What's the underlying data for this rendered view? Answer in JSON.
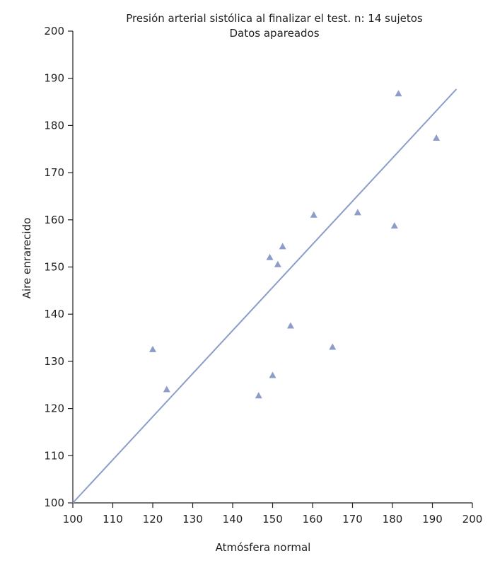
{
  "chart_data": {
    "type": "scatter",
    "title": "Presión arterial sistólica al finalizar el test. n: 14 sujetos",
    "subtitle": "Datos apareados",
    "xlabel": "Atmósfera normal",
    "ylabel": "Aire enrarecido",
    "xlim": [
      100,
      200
    ],
    "ylim": [
      100,
      200
    ],
    "xticks": [
      "100",
      "110",
      "120",
      "130",
      "140",
      "150",
      "160",
      "170",
      "180",
      "190",
      "200"
    ],
    "yticks": [
      "100",
      "110",
      "120",
      "130",
      "140",
      "150",
      "160",
      "170",
      "180",
      "190",
      "200"
    ],
    "grid": false,
    "legend": "none",
    "marker": "triangle",
    "colors": {
      "points": "#8b9dc8",
      "line": "#8b9dc8",
      "axes": "#231f20"
    },
    "points": [
      {
        "x": 120,
        "y": 132.5
      },
      {
        "x": 123.5,
        "y": 124
      },
      {
        "x": 146.5,
        "y": 122.7
      },
      {
        "x": 149.3,
        "y": 152
      },
      {
        "x": 150,
        "y": 127
      },
      {
        "x": 151.3,
        "y": 150.5
      },
      {
        "x": 152.5,
        "y": 154.3
      },
      {
        "x": 154.5,
        "y": 137.5
      },
      {
        "x": 160.3,
        "y": 161
      },
      {
        "x": 165,
        "y": 133
      },
      {
        "x": 171.3,
        "y": 161.5
      },
      {
        "x": 180.5,
        "y": 158.7
      },
      {
        "x": 181.5,
        "y": 186.7
      },
      {
        "x": 191,
        "y": 177.3
      }
    ],
    "fit_line": {
      "x": [
        100,
        196
      ],
      "y": [
        100,
        187.7
      ]
    }
  }
}
